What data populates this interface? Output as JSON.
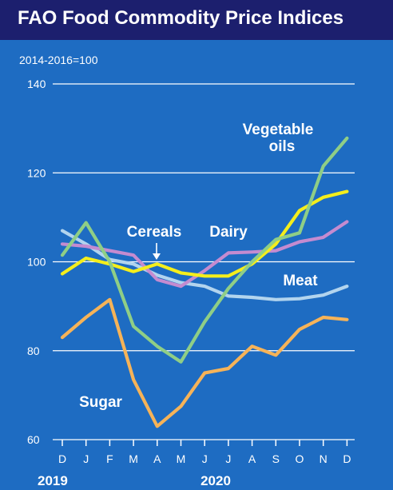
{
  "title": "FAO Food Commodity Price Indices",
  "chart_data": {
    "type": "line",
    "unit_label": "2014-2016=100",
    "x": [
      "D",
      "J",
      "F",
      "M",
      "A",
      "M",
      "J",
      "J",
      "A",
      "S",
      "O",
      "N",
      "D"
    ],
    "year_labels": [
      "2019",
      "2020"
    ],
    "yticks": [
      60,
      80,
      100,
      120,
      140
    ],
    "ylim": [
      60,
      140
    ],
    "grid": true,
    "series": [
      {
        "name": "Vegetable oils",
        "color": "#8fce86",
        "label_lines": [
          "Vegetable",
          "oils"
        ],
        "values": [
          101.5,
          108.8,
          100.0,
          85.5,
          81.0,
          77.5,
          86.5,
          94.0,
          100.0,
          105.0,
          106.5,
          121.5,
          127.8
        ]
      },
      {
        "name": "Cereals",
        "color": "#f4ee1c",
        "label_lines": [
          "Cereals"
        ],
        "values": [
          97.3,
          100.8,
          99.5,
          97.8,
          99.5,
          97.5,
          96.8,
          96.8,
          99.5,
          104.0,
          111.5,
          114.5,
          115.8
        ]
      },
      {
        "name": "Dairy",
        "color": "#c48bd0",
        "label_lines": [
          "Dairy"
        ],
        "values": [
          104.0,
          103.5,
          102.5,
          101.5,
          96.0,
          94.5,
          98.0,
          102.0,
          102.2,
          102.5,
          104.5,
          105.5,
          109.0
        ]
      },
      {
        "name": "Meat",
        "color": "#b2d4ee",
        "label_lines": [
          "Meat"
        ],
        "values": [
          107.0,
          104.0,
          100.5,
          99.5,
          97.0,
          95.3,
          94.5,
          92.3,
          92.0,
          91.5,
          91.7,
          92.5,
          94.5
        ]
      },
      {
        "name": "Sugar",
        "color": "#f6b358",
        "label_lines": [
          "Sugar"
        ],
        "values": [
          83.0,
          87.5,
          91.5,
          73.5,
          63.0,
          67.5,
          75.0,
          76.0,
          81.0,
          79.0,
          84.8,
          87.5,
          87.0
        ]
      }
    ]
  }
}
